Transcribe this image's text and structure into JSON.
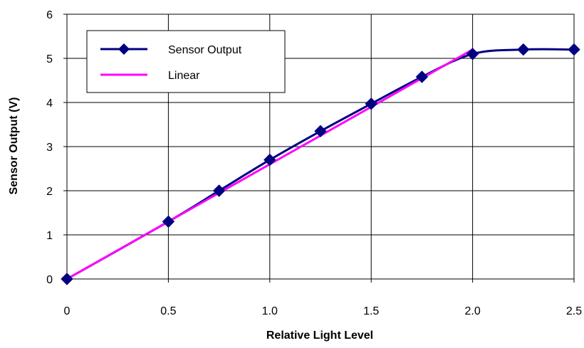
{
  "chart_data": {
    "type": "line",
    "xlabel": "Relative Light Level",
    "ylabel": "Sensor Output (V)",
    "xlim": [
      0,
      2.5
    ],
    "ylim": [
      0,
      6
    ],
    "x_ticks": [
      {
        "value": 0,
        "label": "0"
      },
      {
        "value": 0.5,
        "label": "0.5"
      },
      {
        "value": 1.0,
        "label": "1.0"
      },
      {
        "value": 1.5,
        "label": "1.5"
      },
      {
        "value": 2.0,
        "label": "2.0"
      },
      {
        "value": 2.5,
        "label": "2.5"
      }
    ],
    "y_ticks": [
      {
        "value": 0,
        "label": "0"
      },
      {
        "value": 1,
        "label": "1"
      },
      {
        "value": 2,
        "label": "2"
      },
      {
        "value": 3,
        "label": "3"
      },
      {
        "value": 4,
        "label": "4"
      },
      {
        "value": 5,
        "label": "5"
      },
      {
        "value": 6,
        "label": "6"
      }
    ],
    "grid": true,
    "legend_position": "top-left",
    "series": [
      {
        "name": "Sensor Output",
        "color": "#000080",
        "marker": "diamond",
        "smooth": true,
        "x": [
          0,
          0.5,
          0.75,
          1.0,
          1.25,
          1.5,
          1.75,
          2.0,
          2.25,
          2.5
        ],
        "y": [
          0,
          1.3,
          2.0,
          2.7,
          3.35,
          3.97,
          4.58,
          5.1,
          5.2,
          5.2
        ]
      },
      {
        "name": "Linear",
        "color": "#ff00ff",
        "marker": "none",
        "smooth": false,
        "x": [
          0,
          2.0
        ],
        "y": [
          0,
          5.2
        ]
      }
    ]
  }
}
